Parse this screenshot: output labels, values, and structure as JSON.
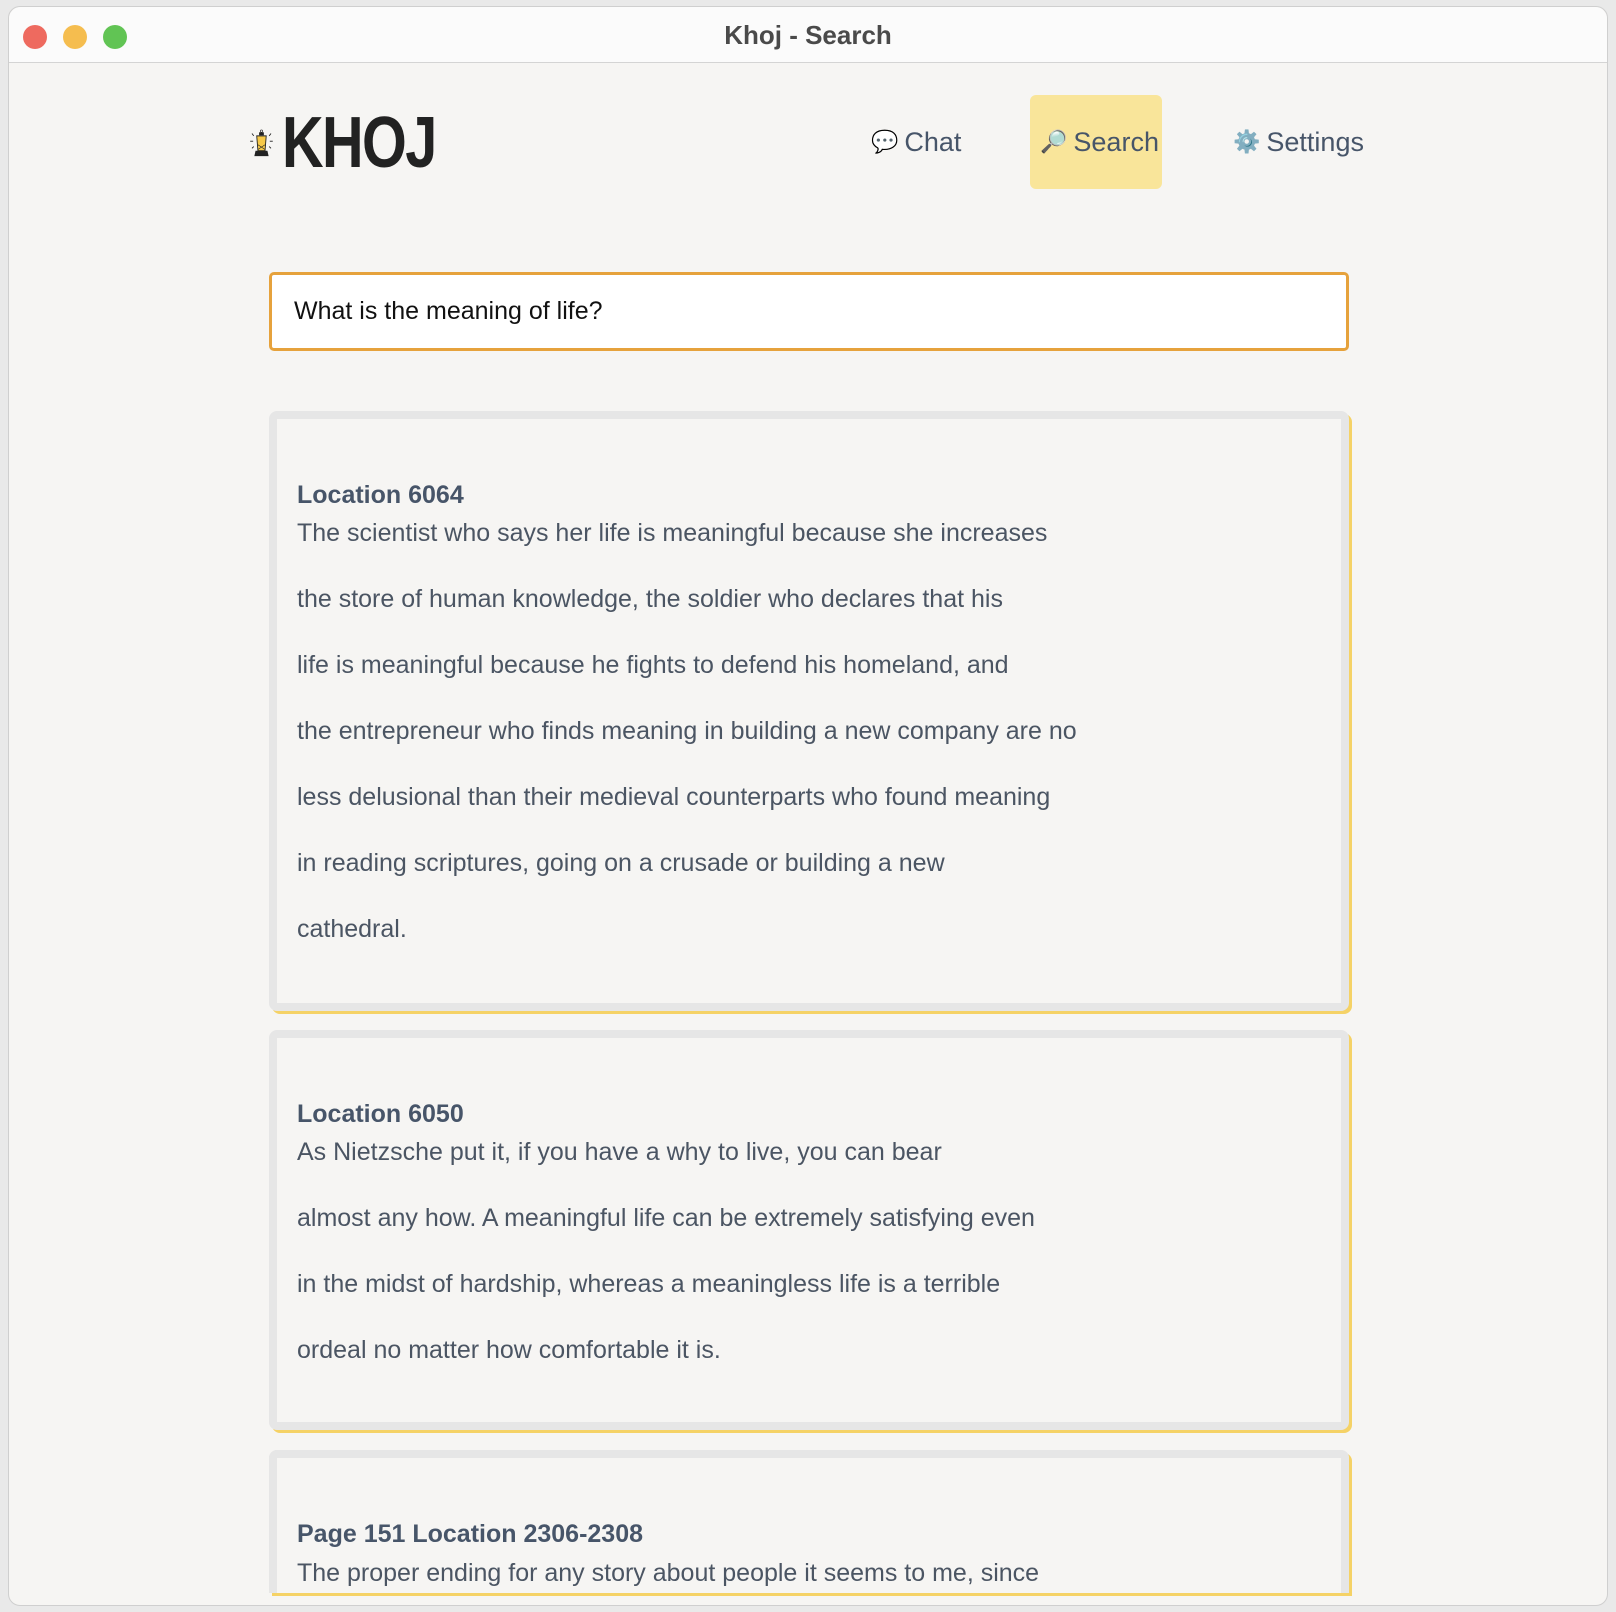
{
  "window": {
    "title": "Khoj - Search",
    "controls": {
      "close": "#ee6a5f",
      "minimize": "#f5bd4f",
      "maximize": "#61c454"
    }
  },
  "logo": {
    "text": "KHOJ"
  },
  "nav": [
    {
      "label": "Chat",
      "icon": "speech-bubble-icon"
    },
    {
      "label": "Search",
      "icon": "magnifier-icon",
      "active": true
    },
    {
      "label": "Settings",
      "icon": "gear-icon"
    }
  ],
  "search": {
    "value": "What is the meaning of life?"
  },
  "results": [
    {
      "title": "Location 6064",
      "lines": [
        "The scientist who says her life is meaningful because she increases",
        "the store of human knowledge, the soldier who declares that his",
        "life is meaningful because he fights to defend his homeland, and",
        "the entrepreneur who finds meaning in building a new company are no",
        "less delusional than their medieval counterparts who found meaning",
        "in reading scriptures, going on a crusade or building a new",
        "cathedral."
      ]
    },
    {
      "title": "Location 6050",
      "lines": [
        "As Nietzsche put it, if you have a why to live, you can bear",
        "almost any how. A meaningful life can be extremely satisfying even",
        "in the midst of hardship, whereas a meaningless life is a terrible",
        "ordeal no matter how comfortable it is."
      ]
    },
    {
      "title": "Page 151 Location 2306-2308",
      "lines": [
        "The proper ending for any story about people it seems to me, since"
      ]
    }
  ],
  "colors": {
    "accent": "#e6a23c",
    "active_nav": "#f9e59a",
    "card_shadow": "#f5d266"
  }
}
